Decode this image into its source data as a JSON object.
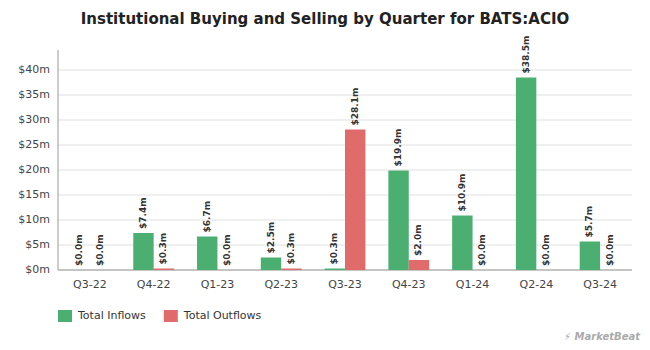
{
  "chart_data": {
    "type": "bar",
    "title": "Institutional Buying and Selling by Quarter for BATS:ACIO",
    "categories": [
      "Q3-22",
      "Q4-22",
      "Q1-23",
      "Q2-23",
      "Q3-23",
      "Q4-23",
      "Q1-24",
      "Q2-24",
      "Q3-24"
    ],
    "series": [
      {
        "name": "Total Inflows",
        "color": "#4caf72",
        "values": [
          0.0,
          7.4,
          6.7,
          2.5,
          0.3,
          19.9,
          10.9,
          38.5,
          5.7
        ],
        "value_labels": [
          "$0.0m",
          "$7.4m",
          "$6.7m",
          "$2.5m",
          "$0.3m",
          "$19.9m",
          "$10.9m",
          "$38.5m",
          "$5.7m"
        ]
      },
      {
        "name": "Total Outflows",
        "color": "#e06b6b",
        "values": [
          0.0,
          0.3,
          0.0,
          0.3,
          28.1,
          2.0,
          0.0,
          0.0,
          0.0
        ],
        "value_labels": [
          "$0.0m",
          "$0.3m",
          "$0.0m",
          "$0.3m",
          "$28.1m",
          "$2.0m",
          "$0.0m",
          "$0.0m",
          "$0.0m"
        ]
      }
    ],
    "ylim": [
      0,
      44
    ],
    "yticks": [
      {
        "value": 0,
        "label": "$0m"
      },
      {
        "value": 5,
        "label": "$5m"
      },
      {
        "value": 10,
        "label": "$10m"
      },
      {
        "value": 15,
        "label": "$15m"
      },
      {
        "value": 20,
        "label": "$20m"
      },
      {
        "value": 25,
        "label": "$25m"
      },
      {
        "value": 30,
        "label": "$30m"
      },
      {
        "value": 35,
        "label": "$35m"
      },
      {
        "value": 40,
        "label": "$40m"
      }
    ],
    "grid": true,
    "legend": "bottom",
    "data_labels": true,
    "annotations": [
      "⚡ MarketBeat"
    ]
  }
}
